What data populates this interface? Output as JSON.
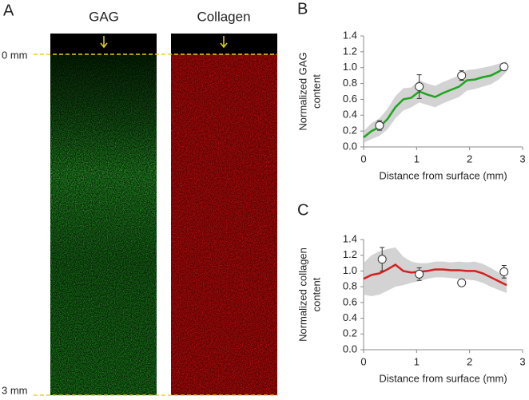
{
  "panel_a": {
    "panel_label": "A",
    "images": [
      {
        "title": "GAG"
      },
      {
        "title": "Collagen"
      }
    ],
    "depth_labels": [
      "0 mm",
      "3 mm"
    ]
  },
  "chart_data": [
    {
      "type": "line",
      "panel_label": "B",
      "ylabel": [
        "Normalized GAG",
        "content"
      ],
      "xlabel": "Distance from surface (mm)",
      "xlim": [
        0,
        3
      ],
      "xticks": [
        0,
        1,
        2,
        3
      ],
      "ylim": [
        0,
        1.4
      ],
      "yticks": [
        {
          "value": 0,
          "label": "0.0"
        },
        {
          "value": 0.2,
          "label": "0.2"
        },
        {
          "value": 0.4,
          "label": "0.4"
        },
        {
          "value": 0.6,
          "label": "0.6"
        },
        {
          "value": 0.8,
          "label": "0.8"
        },
        {
          "value": 1,
          "label": "1.0"
        },
        {
          "value": 1.2,
          "label": "1.2"
        },
        {
          "value": 1.4,
          "label": "1.4"
        }
      ],
      "line": {
        "color": "#1ea51e",
        "band_color": "#c8c8c8",
        "x": [
          0,
          0.15,
          0.3,
          0.45,
          0.6,
          0.75,
          0.9,
          1.05,
          1.2,
          1.35,
          1.5,
          1.65,
          1.8,
          1.95,
          2.1,
          2.25,
          2.4,
          2.55,
          2.7
        ],
        "values": [
          0.12,
          0.2,
          0.25,
          0.35,
          0.5,
          0.6,
          0.62,
          0.7,
          0.66,
          0.63,
          0.68,
          0.72,
          0.76,
          0.84,
          0.85,
          0.88,
          0.9,
          0.95,
          1.02
        ],
        "lower": [
          0.05,
          0.1,
          0.14,
          0.22,
          0.36,
          0.46,
          0.5,
          0.56,
          0.53,
          0.5,
          0.55,
          0.59,
          0.63,
          0.71,
          0.73,
          0.76,
          0.79,
          0.85,
          0.95
        ],
        "upper": [
          0.2,
          0.3,
          0.36,
          0.48,
          0.64,
          0.74,
          0.75,
          0.84,
          0.8,
          0.77,
          0.82,
          0.86,
          0.9,
          0.97,
          0.98,
          1.0,
          1.02,
          1.05,
          1.08
        ]
      },
      "points": {
        "x": [
          0.3,
          1.05,
          1.85,
          2.65
        ],
        "values": [
          0.27,
          0.76,
          0.9,
          1.01
        ],
        "errors": [
          0.06,
          0.15,
          0.06,
          0
        ]
      }
    },
    {
      "type": "line",
      "panel_label": "C",
      "ylabel": [
        "Normalized collagen",
        "content"
      ],
      "xlabel": "Distance from surface (mm)",
      "xlim": [
        0,
        3
      ],
      "xticks": [
        0,
        1,
        2,
        3
      ],
      "ylim": [
        0,
        1.4
      ],
      "yticks": [
        {
          "value": 0,
          "label": "0.0"
        },
        {
          "value": 0.2,
          "label": "0.2"
        },
        {
          "value": 0.4,
          "label": "0.4"
        },
        {
          "value": 0.6,
          "label": "0.6"
        },
        {
          "value": 0.8,
          "label": "0.8"
        },
        {
          "value": 1,
          "label": "1.0"
        },
        {
          "value": 1.2,
          "label": "1.2"
        },
        {
          "value": 1.4,
          "label": "1.4"
        }
      ],
      "line": {
        "color": "#d42020",
        "band_color": "#c8c8c8",
        "x": [
          0,
          0.15,
          0.3,
          0.45,
          0.6,
          0.75,
          0.9,
          1.05,
          1.2,
          1.35,
          1.5,
          1.65,
          1.8,
          1.95,
          2.1,
          2.25,
          2.4,
          2.55,
          2.7
        ],
        "values": [
          0.9,
          0.95,
          0.97,
          1.02,
          1.08,
          1.0,
          0.98,
          0.99,
          1.0,
          1.02,
          1.02,
          1.01,
          1.01,
          1.0,
          1.0,
          0.97,
          0.92,
          0.87,
          0.82
        ],
        "lower": [
          0.7,
          0.68,
          0.7,
          0.75,
          0.8,
          0.82,
          0.85,
          0.87,
          0.9,
          0.92,
          0.92,
          0.91,
          0.9,
          0.89,
          0.88,
          0.85,
          0.8,
          0.76,
          0.72
        ],
        "upper": [
          1.1,
          1.2,
          1.25,
          1.28,
          1.3,
          1.18,
          1.12,
          1.1,
          1.1,
          1.12,
          1.12,
          1.11,
          1.12,
          1.11,
          1.12,
          1.09,
          1.04,
          0.98,
          0.92
        ]
      },
      "points": {
        "x": [
          0.35,
          1.05,
          1.85,
          2.65
        ],
        "values": [
          1.15,
          0.96,
          0.85,
          0.99
        ],
        "errors": [
          0.15,
          0.08,
          0,
          0.08
        ]
      }
    }
  ]
}
